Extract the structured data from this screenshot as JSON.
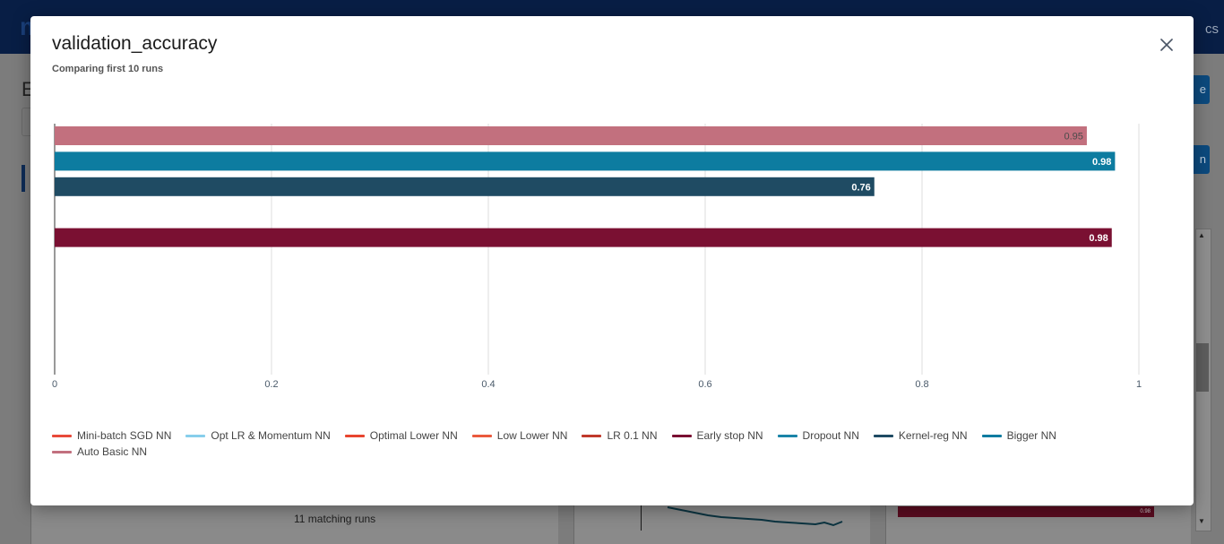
{
  "background": {
    "topbar_text": "cs",
    "logo_text": "m",
    "page_title_initial": "E",
    "button_1_text": "e",
    "button_2_text": "n",
    "matching_runs": "11 matching runs",
    "mini_bar_value": "0.98"
  },
  "modal": {
    "title": "validation_accuracy",
    "subtitle": "Comparing first 10 runs",
    "close_icon": "close-icon"
  },
  "chart_data": {
    "type": "bar",
    "orientation": "horizontal",
    "title": "",
    "xlabel": "",
    "ylabel": "",
    "xlim": [
      0,
      1
    ],
    "x_ticks": [
      "0",
      "0.2",
      "0.4",
      "0.6",
      "0.8",
      "1"
    ],
    "grid": true,
    "legend_position": "bottom",
    "series": [
      {
        "name": "Auto Basic NN",
        "value": 0.952,
        "label": "0.95",
        "color": "#c2707e"
      },
      {
        "name": "Bigger NN",
        "value": 0.978,
        "label": "0.98",
        "color": "#0d7ca0"
      },
      {
        "name": "Kernel-reg NN",
        "value": 0.756,
        "label": "0.76",
        "color": "#1f4b63"
      },
      {
        "name": "Dropout NN",
        "value": null,
        "label": "",
        "color": "#1a84a8"
      },
      {
        "name": "Early stop NN",
        "value": 0.975,
        "label": "0.98",
        "color": "#7a1032"
      },
      {
        "name": "LR 0.1 NN",
        "value": null,
        "label": "",
        "color": "#c0392b"
      },
      {
        "name": "Low Lower NN",
        "value": null,
        "label": "",
        "color": "#ea5a3d"
      },
      {
        "name": "Optimal Lower NN",
        "value": null,
        "label": "",
        "color": "#e8452f"
      },
      {
        "name": "Opt LR & Momentum NN",
        "value": null,
        "label": "",
        "color": "#87ceeb"
      },
      {
        "name": "Mini-batch SGD NN",
        "value": null,
        "label": "",
        "color": "#e84a3a"
      }
    ]
  },
  "legend": [
    {
      "label": "Mini-batch SGD NN",
      "color": "#e84a3a"
    },
    {
      "label": "Opt LR & Momentum NN",
      "color": "#87ceeb"
    },
    {
      "label": "Optimal Lower NN",
      "color": "#e8452f"
    },
    {
      "label": "Low Lower NN",
      "color": "#ea5a3d"
    },
    {
      "label": "LR 0.1 NN",
      "color": "#c0392b"
    },
    {
      "label": "Early stop NN",
      "color": "#7a1032"
    },
    {
      "label": "Dropout NN",
      "color": "#1a84a8"
    },
    {
      "label": "Kernel-reg NN",
      "color": "#1f4b63"
    },
    {
      "label": "Bigger NN",
      "color": "#0d7ca0"
    },
    {
      "label": "Auto Basic NN",
      "color": "#c2707e"
    }
  ]
}
